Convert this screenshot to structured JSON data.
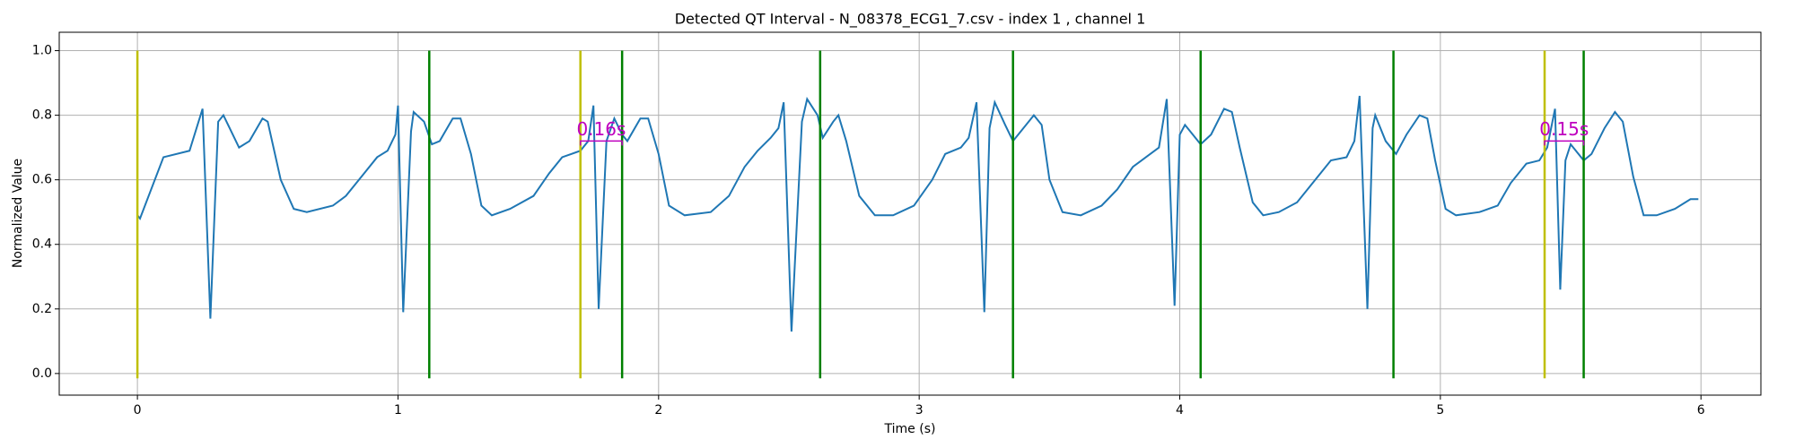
{
  "chart_data": {
    "type": "line",
    "title": "Detected QT Interval - N_08378_ECG1_7.csv - index 1 , channel 1",
    "xlabel": "Time (s)",
    "ylabel": "Normalized Value",
    "color": "#1f77b4",
    "x": [
      0,
      0.01,
      0.1,
      0.2,
      0.25,
      0.28,
      0.31,
      0.33,
      0.39,
      0.43,
      0.48,
      0.5,
      0.55,
      0.6,
      0.65,
      0.75,
      0.8,
      0.87,
      0.92,
      0.96,
      0.99,
      1.0,
      1.02,
      1.05,
      1.06,
      1.1,
      1.13,
      1.16,
      1.21,
      1.24,
      1.28,
      1.32,
      1.36,
      1.43,
      1.52,
      1.58,
      1.63,
      1.7,
      1.73,
      1.75,
      1.77,
      1.8,
      1.83,
      1.86,
      1.88,
      1.93,
      1.96,
      2.0,
      2.04,
      2.1,
      2.2,
      2.27,
      2.33,
      2.38,
      2.43,
      2.46,
      2.48,
      2.51,
      2.55,
      2.57,
      2.61,
      2.63,
      2.67,
      2.69,
      2.72,
      2.77,
      2.83,
      2.9,
      2.98,
      3.05,
      3.1,
      3.16,
      3.19,
      3.22,
      3.25,
      3.27,
      3.29,
      3.33,
      3.36,
      3.39,
      3.44,
      3.47,
      3.5,
      3.55,
      3.62,
      3.7,
      3.76,
      3.82,
      3.87,
      3.92,
      3.95,
      3.98,
      4.0,
      4.02,
      4.08,
      4.12,
      4.17,
      4.2,
      4.23,
      4.28,
      4.32,
      4.38,
      4.45,
      4.52,
      4.58,
      4.64,
      4.67,
      4.69,
      4.72,
      4.74,
      4.75,
      4.79,
      4.83,
      4.87,
      4.92,
      4.95,
      4.98,
      5.02,
      5.06,
      5.15,
      5.22,
      5.27,
      5.33,
      5.38,
      5.41,
      5.44,
      5.46,
      5.48,
      5.5,
      5.55,
      5.58,
      5.63,
      5.67,
      5.7,
      5.74,
      5.78,
      5.83,
      5.9,
      5.96,
      5.99
    ],
    "values": [
      0.49,
      0.48,
      0.67,
      0.69,
      0.82,
      0.17,
      0.78,
      0.8,
      0.7,
      0.72,
      0.79,
      0.78,
      0.6,
      0.51,
      0.5,
      0.52,
      0.55,
      0.62,
      0.67,
      0.69,
      0.74,
      0.83,
      0.19,
      0.75,
      0.81,
      0.78,
      0.71,
      0.72,
      0.79,
      0.79,
      0.68,
      0.52,
      0.49,
      0.51,
      0.55,
      0.62,
      0.67,
      0.69,
      0.72,
      0.83,
      0.2,
      0.72,
      0.79,
      0.74,
      0.72,
      0.79,
      0.79,
      0.68,
      0.52,
      0.49,
      0.5,
      0.55,
      0.64,
      0.69,
      0.73,
      0.76,
      0.84,
      0.13,
      0.78,
      0.85,
      0.8,
      0.73,
      0.78,
      0.8,
      0.72,
      0.55,
      0.49,
      0.49,
      0.52,
      0.6,
      0.68,
      0.7,
      0.73,
      0.84,
      0.19,
      0.76,
      0.84,
      0.77,
      0.72,
      0.75,
      0.8,
      0.77,
      0.6,
      0.5,
      0.49,
      0.52,
      0.57,
      0.64,
      0.67,
      0.7,
      0.85,
      0.21,
      0.74,
      0.77,
      0.71,
      0.74,
      0.82,
      0.81,
      0.7,
      0.53,
      0.49,
      0.5,
      0.53,
      0.6,
      0.66,
      0.67,
      0.72,
      0.86,
      0.2,
      0.76,
      0.8,
      0.72,
      0.68,
      0.74,
      0.8,
      0.79,
      0.66,
      0.51,
      0.49,
      0.5,
      0.52,
      0.59,
      0.65,
      0.66,
      0.7,
      0.82,
      0.26,
      0.66,
      0.71,
      0.66,
      0.68,
      0.76,
      0.81,
      0.78,
      0.61,
      0.49,
      0.49,
      0.51,
      0.54,
      0.54
    ],
    "vlines": [
      {
        "x": 0,
        "color": "#bfbf00"
      },
      {
        "x": 1.12,
        "color": "#008000"
      },
      {
        "x": 1.7,
        "color": "#bfbf00"
      },
      {
        "x": 1.86,
        "color": "#008000"
      },
      {
        "x": 2.62,
        "color": "#008000"
      },
      {
        "x": 3.36,
        "color": "#008000"
      },
      {
        "x": 4.08,
        "color": "#008000"
      },
      {
        "x": 4.82,
        "color": "#008000"
      },
      {
        "x": 5.4,
        "color": "#bfbf00"
      },
      {
        "x": 5.55,
        "color": "#008000"
      }
    ],
    "vline_range": [
      -0.015,
      1.0
    ],
    "annotations": [
      {
        "text": "0.16s",
        "x_start": 1.7,
        "x_end": 1.86,
        "y": 0.72,
        "color": "#bf00bf"
      },
      {
        "text": "0.15s",
        "x_start": 5.4,
        "x_end": 5.55,
        "y": 0.72,
        "color": "#bf00bf"
      }
    ],
    "xlim": [
      -0.3,
      6.23
    ],
    "ylim": [
      -0.067,
      1.057
    ],
    "xticks": [
      0,
      1,
      2,
      3,
      4,
      5,
      6
    ],
    "yticks": [
      {
        "value": 0,
        "label": "0.0"
      },
      0.2,
      0.4,
      0.6,
      0.8,
      {
        "value": 1,
        "label": "1.0"
      }
    ],
    "grid": true
  }
}
